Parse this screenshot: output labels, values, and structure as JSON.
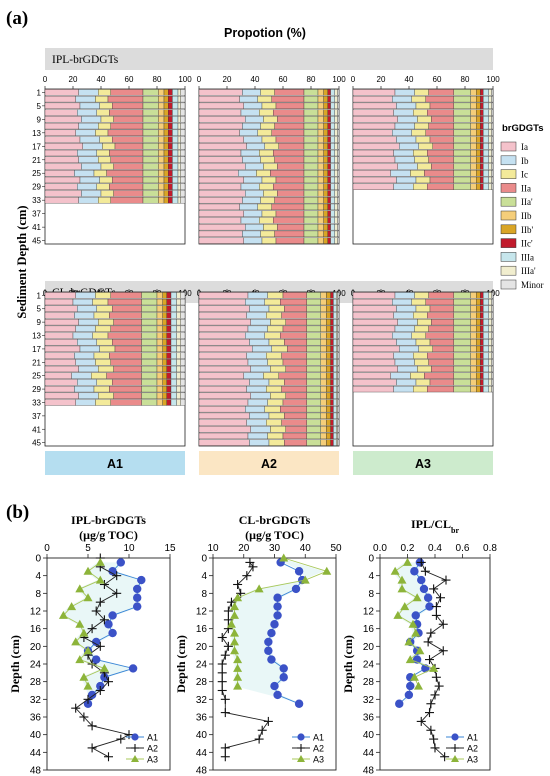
{
  "panel_a": {
    "label": "(a)",
    "title": "Propotion (%)",
    "ylabel": "Sediment Depth (cm)",
    "rows": [
      {
        "title": "IPL-brGDGTs"
      },
      {
        "title": "CL-brGDGTs"
      }
    ],
    "x_ticks": [
      "0",
      "20",
      "40",
      "60",
      "80",
      "100"
    ],
    "depth_ticks": [
      "1",
      "5",
      "9",
      "13",
      "17",
      "21",
      "25",
      "29",
      "33",
      "37",
      "41",
      "45"
    ],
    "sites": [
      {
        "label": "A1",
        "color": "#b5def0"
      },
      {
        "label": "A2",
        "color": "#fbe6c4"
      },
      {
        "label": "A3",
        "color": "#cdebcd"
      }
    ],
    "legend": {
      "title": "brGDGTs",
      "items": [
        {
          "label": "Ia",
          "color": "#f4c2cb"
        },
        {
          "label": "Ib",
          "color": "#c5e1f1"
        },
        {
          "label": "Ic",
          "color": "#f3ea9a"
        },
        {
          "label": "IIa",
          "color": "#ea8b8b"
        },
        {
          "label": "IIa'",
          "color": "#c9df98"
        },
        {
          "label": "IIb",
          "color": "#f5ce7a"
        },
        {
          "label": "IIb'",
          "color": "#d9a526"
        },
        {
          "label": "IIc'",
          "color": "#c11b2c"
        },
        {
          "label": "IIIa",
          "color": "#c6e6ec"
        },
        {
          "label": "IIIa'",
          "color": "#f1eecf"
        },
        {
          "label": "Minor",
          "color": "#e4e4e4"
        }
      ]
    }
  },
  "chart_data": [
    {
      "type": "bar",
      "title": "IPL-brGDGTs A1",
      "stacked": true,
      "horizontal": true,
      "xlim": [
        0,
        100
      ],
      "categories_depth_cm": [
        1,
        3,
        5,
        7,
        9,
        11,
        13,
        15,
        17,
        19,
        21,
        23,
        25,
        27,
        29,
        31,
        33
      ],
      "series_order": [
        "Ia",
        "Ib",
        "Ic",
        "IIa",
        "IIa'",
        "IIb",
        "IIb'",
        "IIc'",
        "IIIa",
        "IIIa'",
        "Minor"
      ],
      "profile": [
        24,
        14,
        9,
        23,
        11,
        4,
        3,
        3,
        4,
        2,
        3
      ]
    },
    {
      "type": "bar",
      "title": "IPL-brGDGTs A2",
      "stacked": true,
      "horizontal": true,
      "xlim": [
        0,
        100
      ],
      "categories_depth_cm": [
        1,
        3,
        5,
        7,
        9,
        11,
        13,
        15,
        17,
        19,
        21,
        23,
        25,
        27,
        29,
        31,
        33,
        35,
        37,
        39,
        41,
        43,
        45
      ],
      "series_order": [
        "Ia",
        "Ib",
        "Ic",
        "IIa",
        "IIa'",
        "IIb",
        "IIb'",
        "IIc'",
        "IIIa",
        "IIIa'",
        "Minor"
      ],
      "profile": [
        31,
        13,
        10,
        21,
        10,
        4,
        3,
        2,
        3,
        2,
        1
      ]
    },
    {
      "type": "bar",
      "title": "IPL-brGDGTs A3",
      "stacked": true,
      "horizontal": true,
      "xlim": [
        0,
        100
      ],
      "categories_depth_cm": [
        1,
        3,
        5,
        7,
        9,
        11,
        13,
        15,
        17,
        19,
        21,
        23,
        25,
        27,
        29
      ],
      "series_order": [
        "Ia",
        "Ib",
        "Ic",
        "IIa",
        "IIa'",
        "IIb",
        "IIb'",
        "IIc'",
        "IIIa",
        "IIIa'",
        "Minor"
      ],
      "profile": [
        30,
        14,
        10,
        18,
        12,
        4,
        3,
        2,
        4,
        2,
        1
      ]
    },
    {
      "type": "bar",
      "title": "CL-brGDGTs A1",
      "stacked": true,
      "horizontal": true,
      "xlim": [
        0,
        100
      ],
      "categories_depth_cm": [
        1,
        3,
        5,
        7,
        9,
        11,
        13,
        15,
        17,
        19,
        21,
        23,
        25,
        27,
        29,
        31,
        33
      ],
      "series_order": [
        "Ia",
        "Ib",
        "Ic",
        "IIa",
        "IIa'",
        "IIb",
        "IIb'",
        "IIc'",
        "IIIa",
        "IIIa'",
        "Minor"
      ],
      "profile": [
        22,
        14,
        11,
        22,
        11,
        4,
        3,
        3,
        4,
        3,
        3
      ]
    },
    {
      "type": "bar",
      "title": "CL-brGDGTs A2",
      "stacked": true,
      "horizontal": true,
      "xlim": [
        0,
        100
      ],
      "categories_depth_cm": [
        1,
        3,
        5,
        7,
        9,
        11,
        13,
        15,
        17,
        19,
        21,
        23,
        25,
        27,
        29,
        31,
        33,
        35,
        37,
        39,
        41,
        43,
        45
      ],
      "series_order": [
        "Ia",
        "Ib",
        "Ic",
        "IIa",
        "IIa'",
        "IIb",
        "IIb'",
        "IIc'",
        "IIIa",
        "IIIa'",
        "Minor"
      ],
      "profile": [
        35,
        14,
        11,
        17,
        10,
        4,
        3,
        2,
        2,
        1,
        1
      ]
    },
    {
      "type": "bar",
      "title": "CL-brGDGTs A3",
      "stacked": true,
      "horizontal": true,
      "xlim": [
        0,
        100
      ],
      "categories_depth_cm": [
        1,
        3,
        5,
        7,
        9,
        11,
        13,
        15,
        17,
        19,
        21,
        23,
        25,
        27,
        29
      ],
      "series_order": [
        "Ia",
        "Ib",
        "Ic",
        "IIa",
        "IIa'",
        "IIb",
        "IIb'",
        "IIc'",
        "IIIa",
        "IIIa'",
        "Minor"
      ],
      "profile": [
        30,
        14,
        10,
        18,
        12,
        4,
        3,
        2,
        4,
        2,
        1
      ]
    },
    {
      "type": "line",
      "title": "IPL-brGDGTs",
      "title_line2": "(μg/g TOC)",
      "ylabel": "Depth (cm)",
      "xlim": [
        0,
        15
      ],
      "ylim": [
        0,
        48
      ],
      "y_reversed": true,
      "x_ticks": [
        0,
        5,
        10,
        15
      ],
      "y_ticks": [
        0,
        4,
        8,
        12,
        16,
        20,
        24,
        28,
        32,
        36,
        40,
        44,
        48
      ],
      "series": [
        {
          "name": "A1",
          "marker": "circle",
          "color": "#3b52c7",
          "points": [
            [
              9,
              1
            ],
            [
              8,
              3
            ],
            [
              11.5,
              5
            ],
            [
              11,
              7
            ],
            [
              11,
              9
            ],
            [
              11,
              11
            ],
            [
              8,
              13
            ],
            [
              7.5,
              15
            ],
            [
              8,
              17
            ],
            [
              6,
              19
            ],
            [
              5,
              21
            ],
            [
              6,
              23
            ],
            [
              10.5,
              25
            ],
            [
              7,
              27
            ],
            [
              6.5,
              29
            ],
            [
              5.5,
              31
            ],
            [
              5,
              33
            ]
          ]
        },
        {
          "name": "A2",
          "marker": "plus",
          "color": "#111",
          "points": [
            [
              6.5,
              0
            ],
            [
              6.5,
              2
            ],
            [
              8.5,
              4
            ],
            [
              7,
              6
            ],
            [
              8.5,
              8
            ],
            [
              6.5,
              10
            ],
            [
              6,
              12
            ],
            [
              7,
              14
            ],
            [
              5.5,
              16
            ],
            [
              4.5,
              18
            ],
            [
              6.5,
              20
            ],
            [
              5,
              22
            ],
            [
              5.5,
              24
            ],
            [
              7,
              26
            ],
            [
              7.5,
              28
            ],
            [
              6.5,
              30
            ],
            [
              5,
              32
            ],
            [
              3.5,
              34
            ],
            [
              4.5,
              36
            ],
            [
              5.5,
              38
            ],
            [
              10,
              40
            ],
            [
              9,
              41
            ],
            [
              5.5,
              43
            ],
            [
              7.5,
              45
            ]
          ]
        },
        {
          "name": "A3",
          "marker": "triangle",
          "color": "#8db43a",
          "points": [
            [
              6.5,
              1
            ],
            [
              5,
              3
            ],
            [
              6.5,
              5
            ],
            [
              4,
              7
            ],
            [
              5,
              9
            ],
            [
              3,
              11
            ],
            [
              2,
              13
            ],
            [
              4,
              15
            ],
            [
              4.5,
              17
            ],
            [
              3.5,
              19
            ],
            [
              5,
              21
            ],
            [
              4,
              23
            ],
            [
              7,
              25
            ],
            [
              4.5,
              27
            ],
            [
              5,
              29
            ]
          ]
        }
      ]
    },
    {
      "type": "line",
      "title": "CL-brGDGTs",
      "title_line2": "(μg/g TOC)",
      "ylabel": "Depth (cm)",
      "xlim": [
        10,
        50
      ],
      "ylim": [
        0,
        48
      ],
      "y_reversed": true,
      "x_ticks": [
        10,
        20,
        30,
        40,
        50
      ],
      "y_ticks": [
        0,
        4,
        8,
        12,
        16,
        20,
        24,
        28,
        32,
        36,
        40,
        44,
        48
      ],
      "series": [
        {
          "name": "A1",
          "marker": "circle",
          "color": "#3b52c7",
          "points": [
            [
              32,
              1
            ],
            [
              38,
              3
            ],
            [
              39,
              5
            ],
            [
              37,
              7
            ],
            [
              31,
              9
            ],
            [
              31,
              11
            ],
            [
              31,
              13
            ],
            [
              30,
              15
            ],
            [
              29,
              17
            ],
            [
              28,
              19
            ],
            [
              28,
              21
            ],
            [
              29,
              23
            ],
            [
              33,
              25
            ],
            [
              33,
              27
            ],
            [
              30,
              29
            ],
            [
              31,
              31
            ],
            [
              38,
              33
            ]
          ]
        },
        {
          "name": "A2",
          "marker": "plus",
          "color": "#111",
          "points": [
            [
              22,
              1
            ],
            [
              23,
              2
            ],
            [
              21,
              4
            ],
            [
              18,
              6
            ],
            [
              19,
              8
            ],
            [
              16,
              10
            ],
            [
              15,
              12
            ],
            [
              15,
              14
            ],
            [
              15,
              16
            ],
            [
              13,
              18
            ],
            [
              15,
              20
            ],
            [
              14,
              22
            ],
            [
              13,
              24
            ],
            [
              13,
              26
            ],
            [
              13,
              28
            ],
            [
              13,
              30
            ],
            [
              14,
              32
            ],
            [
              14,
              35
            ],
            [
              28,
              37
            ],
            [
              26,
              39
            ],
            [
              25,
              41
            ],
            [
              14,
              43
            ],
            [
              14,
              45
            ]
          ]
        },
        {
          "name": "A3",
          "marker": "triangle",
          "color": "#8db43a",
          "points": [
            [
              33,
              0
            ],
            [
              47,
              3
            ],
            [
              40,
              5
            ],
            [
              25,
              7
            ],
            [
              18,
              9
            ],
            [
              17,
              11
            ],
            [
              17,
              13
            ],
            [
              16,
              15
            ],
            [
              17,
              17
            ],
            [
              17,
              19
            ],
            [
              17,
              21
            ],
            [
              18,
              23
            ],
            [
              18,
              25
            ],
            [
              18,
              27
            ],
            [
              18,
              29
            ]
          ]
        }
      ]
    },
    {
      "type": "line",
      "title": "IPL/CL",
      "title_sub": "br",
      "ylabel": "Depth (cm)",
      "xlim": [
        0,
        0.8
      ],
      "ylim": [
        0,
        48
      ],
      "y_reversed": true,
      "x_ticks": [
        "0.0",
        "0.2",
        "0.4",
        "0.6",
        "0.8"
      ],
      "y_ticks": [
        0,
        4,
        8,
        12,
        16,
        20,
        24,
        28,
        32,
        36,
        40,
        44,
        48
      ],
      "series": [
        {
          "name": "A1",
          "marker": "circle",
          "color": "#3b52c7",
          "points": [
            [
              0.29,
              1
            ],
            [
              0.25,
              3
            ],
            [
              0.3,
              5
            ],
            [
              0.32,
              7
            ],
            [
              0.35,
              9
            ],
            [
              0.36,
              11
            ],
            [
              0.26,
              13
            ],
            [
              0.27,
              15
            ],
            [
              0.28,
              17
            ],
            [
              0.22,
              19
            ],
            [
              0.27,
              21
            ],
            [
              0.27,
              23
            ],
            [
              0.33,
              25
            ],
            [
              0.22,
              27
            ],
            [
              0.22,
              29
            ],
            [
              0.21,
              31
            ],
            [
              0.14,
              33
            ]
          ]
        },
        {
          "name": "A2",
          "marker": "plus",
          "color": "#111",
          "points": [
            [
              0.3,
              1
            ],
            [
              0.33,
              3
            ],
            [
              0.48,
              5
            ],
            [
              0.39,
              7
            ],
            [
              0.44,
              9
            ],
            [
              0.41,
              11
            ],
            [
              0.41,
              13
            ],
            [
              0.46,
              15
            ],
            [
              0.37,
              17
            ],
            [
              0.35,
              19
            ],
            [
              0.46,
              21
            ],
            [
              0.36,
              23
            ],
            [
              0.4,
              25
            ],
            [
              0.41,
              27
            ],
            [
              0.43,
              29
            ],
            [
              0.4,
              31
            ],
            [
              0.37,
              33
            ],
            [
              0.36,
              35
            ],
            [
              0.3,
              37
            ],
            [
              0.37,
              39
            ],
            [
              0.39,
              41
            ],
            [
              0.4,
              43
            ],
            [
              0.47,
              45
            ]
          ]
        },
        {
          "name": "A3",
          "marker": "triangle",
          "color": "#8db43a",
          "points": [
            [
              0.2,
              1
            ],
            [
              0.11,
              3
            ],
            [
              0.16,
              5
            ],
            [
              0.16,
              7
            ],
            [
              0.27,
              9
            ],
            [
              0.18,
              11
            ],
            [
              0.13,
              13
            ],
            [
              0.24,
              15
            ],
            [
              0.26,
              17
            ],
            [
              0.21,
              19
            ],
            [
              0.29,
              21
            ],
            [
              0.22,
              23
            ],
            [
              0.39,
              25
            ],
            [
              0.25,
              27
            ],
            [
              0.28,
              29
            ]
          ]
        }
      ]
    }
  ],
  "panel_b": {
    "label": "(b)",
    "legend_names": [
      "A1",
      "A2",
      "A3"
    ]
  }
}
